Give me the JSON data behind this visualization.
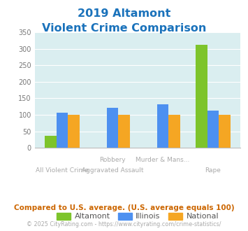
{
  "title_line1": "2019 Altamont",
  "title_line2": "Violent Crime Comparison",
  "cat_labels_top": [
    "",
    "Robbery",
    "Murder & Mans...",
    ""
  ],
  "cat_labels_bot": [
    "All Violent Crime",
    "Aggravated Assault",
    "",
    "Rape"
  ],
  "altamont": [
    37,
    0,
    0,
    312
  ],
  "illinois": [
    107,
    122,
    133,
    112
  ],
  "national": [
    100,
    100,
    100,
    100
  ],
  "altamont_color": "#7dc42b",
  "illinois_color": "#4d90f0",
  "national_color": "#f5a623",
  "bg_color": "#daeef0",
  "ylim": [
    0,
    350
  ],
  "yticks": [
    0,
    50,
    100,
    150,
    200,
    250,
    300,
    350
  ],
  "title_color": "#1a72bb",
  "label_color": "#aaaaaa",
  "footnote1": "Compared to U.S. average. (U.S. average equals 100)",
  "footnote2": "© 2025 CityRating.com - https://www.cityrating.com/crime-statistics/",
  "footnote1_color": "#cc6600",
  "footnote2_color": "#aaaaaa",
  "legend_label_color": "#555555"
}
